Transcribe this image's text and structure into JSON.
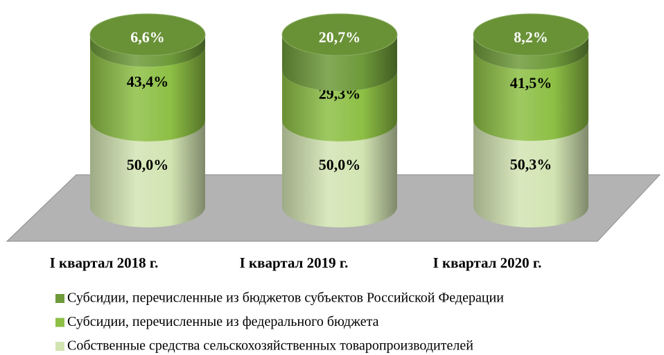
{
  "chart_data": {
    "type": "cylinder-stacked",
    "categories": [
      "I квартал 2018 г.",
      "I квартал 2019 г.",
      "I квартал 2020 г."
    ],
    "series": [
      {
        "name": "Субсидии, перечисленные из бюджетов субъектов Российской Федерации",
        "color": "#6e9a3a",
        "label_color": "#ffffff",
        "values": [
          6.6,
          20.7,
          8.2
        ],
        "value_labels": [
          "6,6%",
          "20,7%",
          "8,2%"
        ]
      },
      {
        "name": "Субсидии, перечисленные из федерального бюджета",
        "color": "#8dbf45",
        "label_color": "#000000",
        "values": [
          43.4,
          29.3,
          41.5
        ],
        "value_labels": [
          "43,4%",
          "29,3%",
          "41,5%"
        ]
      },
      {
        "name": "Собственные средства сельскохозяйственных товаропроизводителей",
        "color": "#d2e4b2",
        "label_color": "#000000",
        "values": [
          50.0,
          50.0,
          50.3
        ],
        "value_labels": [
          "50,0%",
          "50,0%",
          "50,3%"
        ]
      }
    ]
  }
}
